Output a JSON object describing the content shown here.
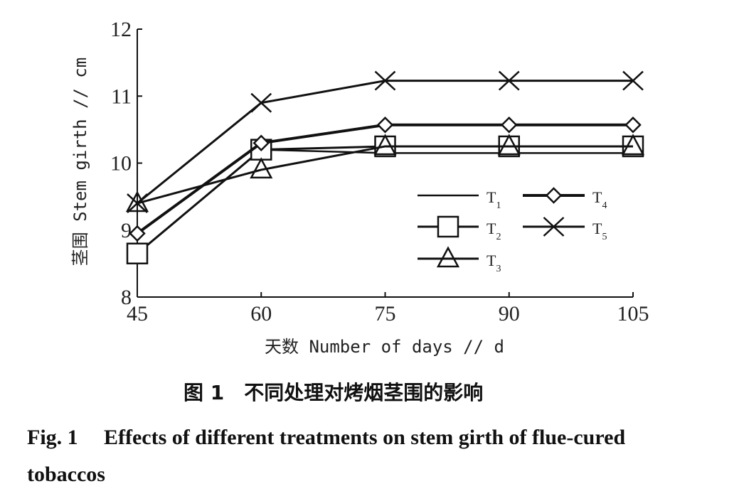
{
  "chart_data": {
    "type": "line",
    "x": [
      45,
      60,
      75,
      90,
      105
    ],
    "series": [
      {
        "name": "T1",
        "values": [
          8.65,
          10.2,
          10.15,
          10.15,
          10.15
        ],
        "marker": "none"
      },
      {
        "name": "T2",
        "values": [
          8.65,
          10.2,
          10.25,
          10.25,
          10.25
        ],
        "marker": "square"
      },
      {
        "name": "T3",
        "values": [
          9.4,
          9.9,
          10.25,
          10.25,
          10.25
        ],
        "marker": "triangle"
      },
      {
        "name": "T4",
        "values": [
          8.95,
          10.3,
          10.57,
          10.57,
          10.57
        ],
        "marker": "diamond"
      },
      {
        "name": "T5",
        "values": [
          9.4,
          10.9,
          11.23,
          11.23,
          11.23
        ],
        "marker": "x"
      }
    ],
    "xlabel": "天数 Number of days // d",
    "ylabel": "茎围 Stem girth // cm",
    "xticks": [
      "45",
      "60",
      "75",
      "90",
      "105"
    ],
    "yticks": [
      "8",
      "9",
      "10",
      "11",
      "12"
    ],
    "xlim": [
      45,
      105
    ],
    "ylim": [
      8,
      12
    ],
    "grid": false,
    "legend_position": "bottom-right inside",
    "legend_labels": [
      {
        "base": "T",
        "sub": "1"
      },
      {
        "base": "T",
        "sub": "2"
      },
      {
        "base": "T",
        "sub": "3"
      },
      {
        "base": "T",
        "sub": "4"
      },
      {
        "base": "T",
        "sub": "5"
      }
    ],
    "line_color": "#111111"
  },
  "caption": {
    "cn": "图 1　不同处理对烤烟茎围的影响",
    "en_label": "Fig. 1",
    "en_text": "Effects of different treatments on stem girth of flue-cured tobaccos"
  }
}
